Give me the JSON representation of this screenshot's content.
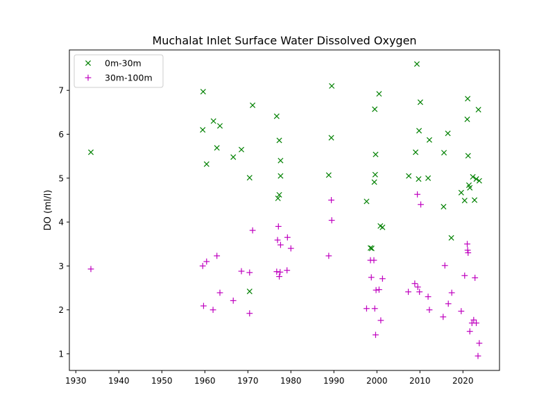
{
  "chart_data": {
    "type": "scatter",
    "title": "Muchalat Inlet Surface Water Dissolved Oxygen",
    "xlabel": "",
    "ylabel": "DO (ml/l)",
    "xlim": [
      1928.5,
      2028.5
    ],
    "ylim": [
      0.62,
      7.92
    ],
    "xticks": [
      1930,
      1940,
      1950,
      1960,
      1970,
      1980,
      1990,
      2000,
      2010,
      2020
    ],
    "yticks": [
      1,
      2,
      3,
      4,
      5,
      6,
      7
    ],
    "grid": false,
    "legend_position": "top-left",
    "series": [
      {
        "name": "0m-30m",
        "marker": "x",
        "color": "#008000",
        "points": [
          [
            1933.5,
            5.59
          ],
          [
            1959.6,
            6.97
          ],
          [
            1959.5,
            6.1
          ],
          [
            1960.4,
            5.32
          ],
          [
            1962.0,
            6.3
          ],
          [
            1962.8,
            5.69
          ],
          [
            1963.5,
            6.19
          ],
          [
            1966.6,
            5.48
          ],
          [
            1968.5,
            5.65
          ],
          [
            1970.4,
            5.01
          ],
          [
            1970.4,
            2.42
          ],
          [
            1971.1,
            6.66
          ],
          [
            1976.7,
            6.41
          ],
          [
            1977.0,
            4.54
          ],
          [
            1977.3,
            5.86
          ],
          [
            1977.6,
            5.4
          ],
          [
            1977.6,
            5.05
          ],
          [
            1977.3,
            4.62
          ],
          [
            1988.8,
            5.07
          ],
          [
            1989.5,
            7.1
          ],
          [
            1989.4,
            5.92
          ],
          [
            1997.6,
            4.47
          ],
          [
            1998.5,
            3.41
          ],
          [
            1998.8,
            3.4
          ],
          [
            1999.5,
            6.57
          ],
          [
            1999.7,
            5.54
          ],
          [
            1999.6,
            5.08
          ],
          [
            1999.4,
            4.91
          ],
          [
            2000.5,
            6.92
          ],
          [
            2000.8,
            3.91
          ],
          [
            2001.3,
            3.88
          ],
          [
            2007.4,
            5.05
          ],
          [
            2009.0,
            5.59
          ],
          [
            2009.3,
            7.6
          ],
          [
            2009.8,
            6.08
          ],
          [
            2010.1,
            6.73
          ],
          [
            2009.7,
            4.98
          ],
          [
            2011.9,
            5.0
          ],
          [
            2012.2,
            5.87
          ],
          [
            2015.6,
            5.58
          ],
          [
            2015.5,
            4.35
          ],
          [
            2016.5,
            6.02
          ],
          [
            2017.3,
            3.64
          ],
          [
            2019.6,
            4.67
          ],
          [
            2020.4,
            4.49
          ],
          [
            2021.1,
            6.81
          ],
          [
            2021.0,
            6.34
          ],
          [
            2021.2,
            5.51
          ],
          [
            2021.6,
            4.78
          ],
          [
            2021.4,
            4.84
          ],
          [
            2022.3,
            5.03
          ],
          [
            2022.7,
            4.5
          ],
          [
            2023.1,
            4.98
          ],
          [
            2023.6,
            6.56
          ],
          [
            2023.8,
            4.94
          ]
        ]
      },
      {
        "name": "30m-100m",
        "marker": "+",
        "color": "#bf00bf",
        "points": [
          [
            1933.5,
            2.93
          ],
          [
            1959.5,
            3.0
          ],
          [
            1959.7,
            2.09
          ],
          [
            1960.4,
            3.1
          ],
          [
            1961.9,
            2.0
          ],
          [
            1962.8,
            3.23
          ],
          [
            1963.5,
            2.39
          ],
          [
            1966.6,
            2.21
          ],
          [
            1968.5,
            2.88
          ],
          [
            1970.4,
            2.85
          ],
          [
            1970.4,
            1.92
          ],
          [
            1971.1,
            3.81
          ],
          [
            1976.7,
            2.87
          ],
          [
            1976.9,
            3.59
          ],
          [
            1977.1,
            3.9
          ],
          [
            1977.6,
            3.48
          ],
          [
            1977.3,
            2.76
          ],
          [
            1977.5,
            2.86
          ],
          [
            1979.2,
            3.65
          ],
          [
            1979.1,
            2.9
          ],
          [
            1980.0,
            3.4
          ],
          [
            1988.8,
            3.23
          ],
          [
            1989.4,
            4.5
          ],
          [
            1989.5,
            4.04
          ],
          [
            1997.6,
            2.03
          ],
          [
            1998.5,
            3.13
          ],
          [
            1998.7,
            2.74
          ],
          [
            1999.3,
            3.13
          ],
          [
            1999.5,
            2.03
          ],
          [
            1999.8,
            2.45
          ],
          [
            1999.7,
            1.43
          ],
          [
            2000.5,
            2.46
          ],
          [
            2000.9,
            1.76
          ],
          [
            2001.3,
            2.71
          ],
          [
            2007.3,
            2.41
          ],
          [
            2008.8,
            2.6
          ],
          [
            2009.4,
            4.63
          ],
          [
            2009.5,
            2.52
          ],
          [
            2009.9,
            2.41
          ],
          [
            2010.2,
            4.4
          ],
          [
            2011.9,
            2.3
          ],
          [
            2012.2,
            2.0
          ],
          [
            2015.4,
            1.84
          ],
          [
            2015.8,
            3.01
          ],
          [
            2016.6,
            2.14
          ],
          [
            2017.4,
            2.39
          ],
          [
            2019.6,
            1.97
          ],
          [
            2020.4,
            2.78
          ],
          [
            2021.0,
            3.5
          ],
          [
            2021.1,
            3.36
          ],
          [
            2021.2,
            3.3
          ],
          [
            2021.6,
            1.51
          ],
          [
            2022.1,
            1.7
          ],
          [
            2022.5,
            1.77
          ],
          [
            2022.8,
            2.73
          ],
          [
            2023.1,
            1.7
          ],
          [
            2023.5,
            0.95
          ],
          [
            2023.8,
            1.24
          ]
        ]
      }
    ]
  }
}
